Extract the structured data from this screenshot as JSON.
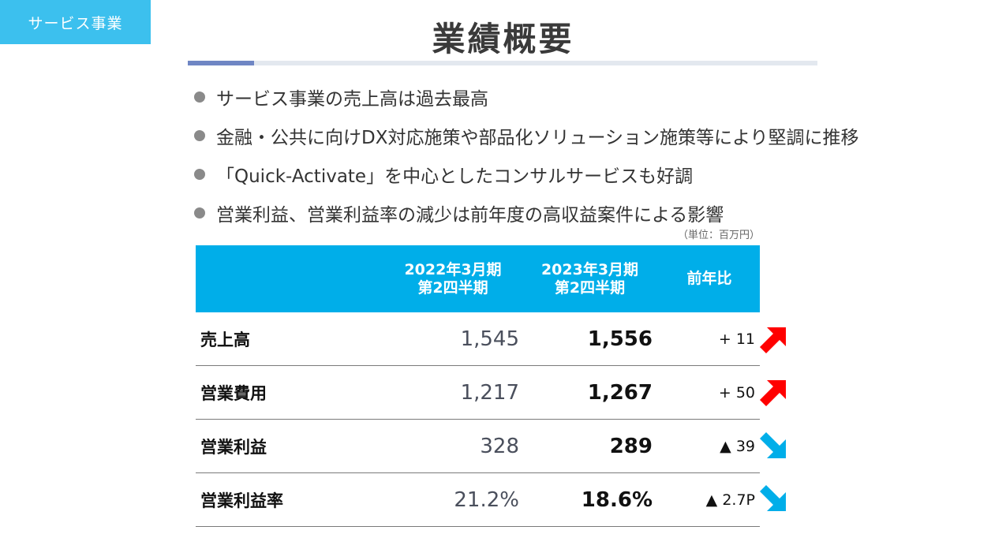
{
  "section_tag": "サービス事業",
  "title": "業績概要",
  "bullets": [
    "サービス事業の売上高は過去最高",
    "金融・公共に向けDX対応施策や部品化ソリューション施策等により堅調に推移",
    "「Quick-Activate」を中心としたコンサルサービスも好調",
    "営業利益、営業利益率の減少は前年度の高収益案件による影響"
  ],
  "unit_note": "（単位：百万円）",
  "table": {
    "headers": {
      "label": "",
      "prev_line1": "2022年3月期",
      "prev_line2": "第2四半期",
      "cur_line1": "2023年3月期",
      "cur_line2": "第2四半期",
      "diff": "前年比"
    },
    "rows": [
      {
        "label": "売上高",
        "prev": "1,545",
        "cur": "1,556",
        "diff": "+ 11",
        "trend": "up"
      },
      {
        "label": "営業費用",
        "prev": "1,217",
        "cur": "1,267",
        "diff": "+ 50",
        "trend": "up"
      },
      {
        "label": "営業利益",
        "prev": "328",
        "cur": "289",
        "diff": "▲ 39",
        "trend": "down"
      },
      {
        "label": "営業利益率",
        "prev": "21.2%",
        "cur": "18.6%",
        "diff": "▲ 2.7P",
        "trend": "down"
      }
    ]
  },
  "colors": {
    "accent": "#00aee9",
    "tag": "#3cc0ee",
    "up_arrow": "#ff0000",
    "down_arrow": "#00aee9",
    "rule_accent": "#6f86c4"
  },
  "icons": {
    "up": "arrow-up-right-icon",
    "down": "arrow-down-right-icon"
  }
}
